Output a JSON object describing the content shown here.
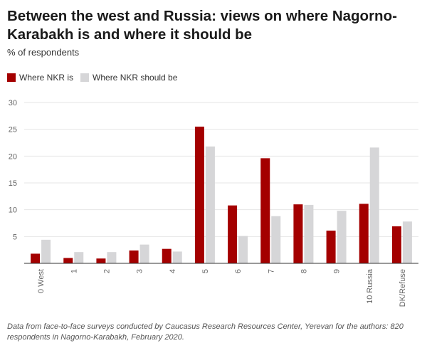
{
  "title": "Between the west and Russia: views on where Nagorno-Karabakh is and where it should be",
  "subtitle": "% of respondents",
  "source": "Data from face-to-face surveys conducted by Caucasus Research Resources Center, Yerevan for the authors: 820 respondents in Nagorno-Karabakh, February 2020.",
  "colors": {
    "is": "#a40000",
    "should": "#d6d6d8",
    "grid": "#e6e6e6",
    "axis": "#333333"
  },
  "chart_data": {
    "type": "bar",
    "categories": [
      "0 West",
      "1",
      "2",
      "3",
      "4",
      "5",
      "6",
      "7",
      "8",
      "9",
      "10 Russia",
      "DK/Refuse"
    ],
    "series": [
      {
        "name": "Where NKR is",
        "values": [
          1.8,
          1.0,
          0.9,
          2.4,
          2.7,
          25.5,
          10.8,
          19.6,
          11.0,
          6.1,
          11.1,
          6.9
        ]
      },
      {
        "name": "Where NKR should be",
        "values": [
          4.4,
          2.1,
          2.1,
          3.5,
          2.2,
          21.8,
          5.1,
          8.8,
          10.9,
          9.8,
          21.6,
          7.8
        ]
      }
    ],
    "ylim": [
      0,
      30
    ],
    "yticks": [
      5,
      10,
      15,
      20,
      25,
      30
    ],
    "grid": true,
    "legend": "top-left"
  }
}
